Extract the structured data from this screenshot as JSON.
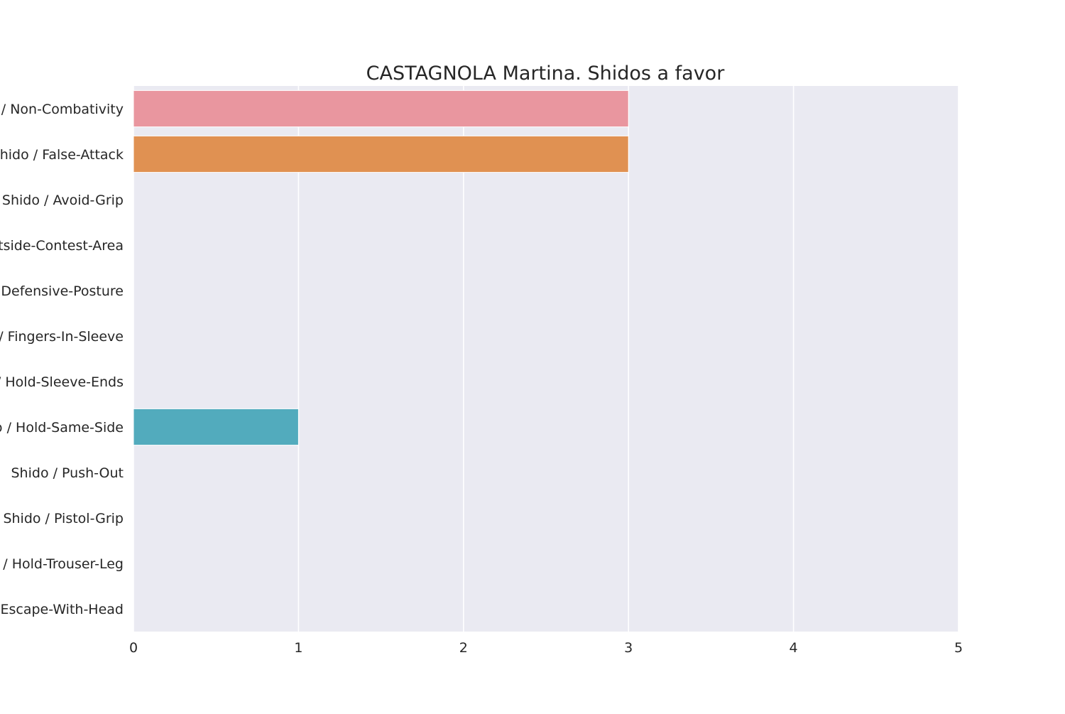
{
  "chart_data": {
    "type": "bar",
    "orientation": "horizontal",
    "title": "CASTAGNOLA Martina. Shidos a favor",
    "xlabel": "",
    "ylabel": "",
    "xlim": [
      0,
      5
    ],
    "x_ticks": [
      0,
      1,
      2,
      3,
      4,
      5
    ],
    "grid": true,
    "categories": [
      "Shido / Non-Combativity",
      "Shido / False-Attack",
      "Shido / Avoid-Grip",
      "Shido / Outside-Contest-Area",
      "Shido / Defensive-Posture",
      "Shido / Fingers-In-Sleeve",
      "Shido / Hold-Sleeve-Ends",
      "Shido / Hold-Same-Side",
      "Shido / Push-Out",
      "Shido / Pistol-Grip",
      "Shido / Hold-Trouser-Leg",
      "Shido / Escape-With-Head"
    ],
    "values": [
      3,
      3,
      0,
      0,
      0,
      0,
      0,
      1,
      0,
      0,
      0,
      0
    ],
    "colors": [
      "#e9969f",
      "#e09152",
      "#c2a74a",
      "#a7b14c",
      "#72b855",
      "#55b68f",
      "#52b3a8",
      "#52abbd",
      "#6aa6d9",
      "#a3a0e8",
      "#d792e3",
      "#e68fc7"
    ],
    "background_color": "#eaeaf2",
    "grid_color": "#ffffff"
  }
}
